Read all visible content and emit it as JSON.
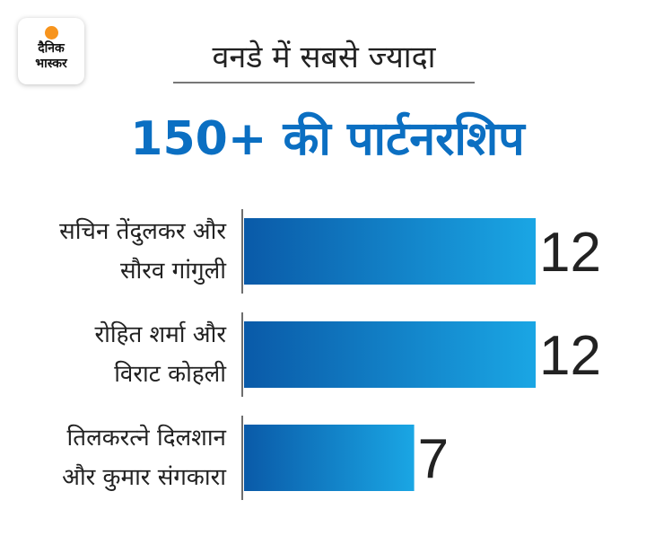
{
  "logo": {
    "line1": "दैनिक",
    "line2": "भास्कर"
  },
  "header": {
    "subtitle": "वनडे में सबसे ज्यादा",
    "title": "150+ की पार्टनरशिप"
  },
  "colors": {
    "title": "#0b6fc2",
    "bar_start": "#0a5aa8",
    "bar_end": "#1aa6e4",
    "logo_dot": "#f7941d"
  },
  "chart_data": {
    "type": "bar",
    "orientation": "horizontal",
    "categories": [
      [
        "सचिन तेंदुलकर और",
        "सौरव गांगुली"
      ],
      [
        "रोहित शर्मा और",
        "विराट कोहली"
      ],
      [
        "तिलकरत्ने दिलशान",
        "और कुमार संगकारा"
      ]
    ],
    "values": [
      12,
      12,
      7
    ],
    "data_labels": [
      "12",
      "12",
      "7"
    ],
    "xlim": [
      0,
      12
    ],
    "title": "150+ की पार्टनरशिप",
    "subtitle": "वनडे में सबसे ज्यादा"
  }
}
